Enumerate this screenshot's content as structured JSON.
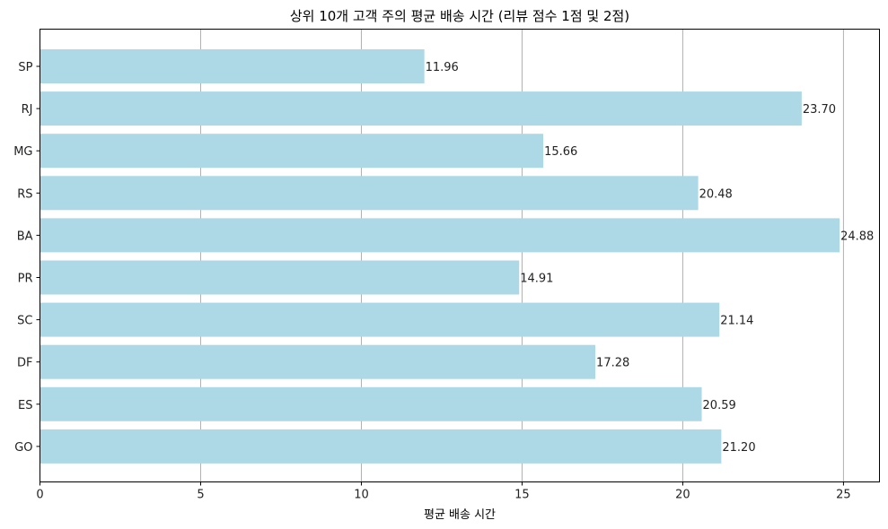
{
  "chart_data": {
    "type": "bar",
    "orientation": "horizontal",
    "title": "상위 10개 고객 주의 평균 배송 시간 (리뷰 점수 1점 및 2점)",
    "xlabel": "평균 배송 시간",
    "ylabel": "",
    "categories": [
      "SP",
      "RJ",
      "MG",
      "RS",
      "BA",
      "PR",
      "SC",
      "DF",
      "ES",
      "GO"
    ],
    "values": [
      11.96,
      23.7,
      15.66,
      20.48,
      24.88,
      14.91,
      21.14,
      17.28,
      20.59,
      21.2
    ],
    "data_labels": [
      "11.96",
      "23.70",
      "15.66",
      "20.48",
      "24.88",
      "14.91",
      "21.14",
      "17.28",
      "20.59",
      "21.20"
    ],
    "xlim": [
      0,
      26.12
    ],
    "xticks": [
      0,
      5,
      10,
      15,
      20,
      25
    ],
    "grid": "vertical",
    "bar_color": "#add8e6"
  }
}
